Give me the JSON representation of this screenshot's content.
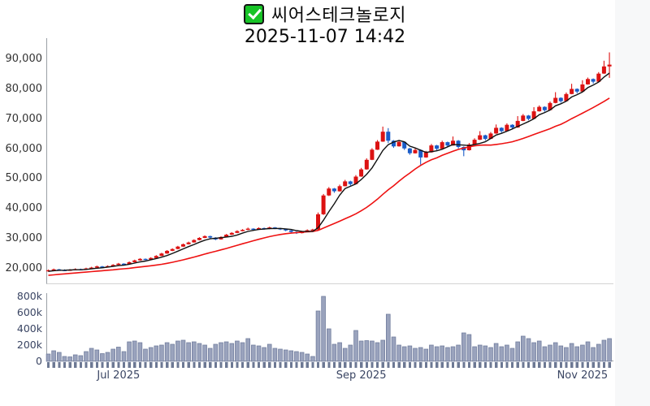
{
  "header": {
    "checkbox_icon": "checked-green-checkbox",
    "title": "씨어스테크놀로지",
    "subtitle": "2025-11-07 14:42"
  },
  "price_axis": {
    "tick_labels": [
      "90,000",
      "80,000",
      "70,000",
      "60,000",
      "50,000",
      "40,000",
      "30,000",
      "20,000"
    ],
    "tick_values": [
      90000,
      80000,
      70000,
      60000,
      50000,
      40000,
      30000,
      20000
    ]
  },
  "volume_axis": {
    "unit": "thousands",
    "tick_labels": [
      "800k",
      "600k",
      "400k",
      "200k",
      "0"
    ],
    "tick_values_k": [
      800,
      600,
      400,
      200,
      0
    ]
  },
  "time_axis": {
    "labels": [
      {
        "text": "Jul 2025",
        "candle_index": 13
      },
      {
        "text": "Sep 2025",
        "candle_index": 58
      },
      {
        "text": "Nov 2025",
        "candle_index": 99
      }
    ]
  },
  "colors": {
    "up": "#dc1212",
    "down": "#1a5cc8",
    "ma_fast": "#111111",
    "ma_slow": "#ee1111",
    "volume_fill": "#9aa3bd",
    "volume_stroke": "#727e9e",
    "axis_text": "#333333",
    "slate_text": "#3a4563",
    "plot_bg": "#ffffff",
    "page_bg": "#f7f8f9"
  },
  "chart_data": {
    "type": "candlestick",
    "title": "씨어스테크놀로지",
    "subtitle": "2025-11-07 14:42",
    "panes": [
      "price-candles-with-ma-overlays",
      "volume-bars"
    ],
    "x_tick_labels": [
      "Jul 2025",
      "Sep 2025",
      "Nov 2025"
    ],
    "price_axis_ticks": [
      20000,
      30000,
      40000,
      50000,
      60000,
      70000,
      80000,
      90000
    ],
    "price_display_range": [
      17500,
      93500
    ],
    "volume_axis_ticks_k": [
      0,
      200,
      400,
      600,
      800
    ],
    "grid": false,
    "legend": false,
    "overlays": [
      {
        "name": "fast-moving-average",
        "period": 5,
        "color": "#111111"
      },
      {
        "name": "slow-moving-average",
        "period": 20,
        "color": "#ee1111"
      }
    ],
    "candles_ohlcv_format": [
      "open",
      "high",
      "low",
      "close",
      "volume_k"
    ],
    "candles_ohlcv": [
      [
        19300,
        19750,
        19000,
        19500,
        90
      ],
      [
        19500,
        20050,
        19350,
        19800,
        130
      ],
      [
        19800,
        19950,
        19400,
        19600,
        110
      ],
      [
        19600,
        19800,
        19200,
        19400,
        60
      ],
      [
        19400,
        19900,
        19300,
        19700,
        55
      ],
      [
        19700,
        20150,
        19550,
        19900,
        80
      ],
      [
        19900,
        20050,
        19550,
        19750,
        70
      ],
      [
        19750,
        20350,
        19650,
        20100,
        120
      ],
      [
        20100,
        20650,
        20000,
        20400,
        160
      ],
      [
        20400,
        21050,
        20300,
        20800,
        140
      ],
      [
        20800,
        20950,
        20400,
        20600,
        95
      ],
      [
        20600,
        21150,
        20500,
        20900,
        110
      ],
      [
        20900,
        21550,
        20800,
        21300,
        150
      ],
      [
        21300,
        21950,
        21200,
        21700,
        175
      ],
      [
        21700,
        21850,
        21300,
        21500,
        120
      ],
      [
        21500,
        22450,
        21400,
        22200,
        240
      ],
      [
        22200,
        23050,
        22100,
        22800,
        250
      ],
      [
        22800,
        23550,
        22700,
        23300,
        230
      ],
      [
        23300,
        23450,
        22850,
        23100,
        150
      ],
      [
        23100,
        23850,
        23000,
        23600,
        170
      ],
      [
        23600,
        24550,
        23500,
        24300,
        190
      ],
      [
        24300,
        25350,
        24200,
        25100,
        200
      ],
      [
        25100,
        26250,
        25000,
        26000,
        230
      ],
      [
        26000,
        26850,
        25900,
        26600,
        210
      ],
      [
        26600,
        27650,
        26500,
        27400,
        250
      ],
      [
        27400,
        28450,
        27300,
        28200,
        260
      ],
      [
        28200,
        29050,
        28100,
        28800,
        230
      ],
      [
        28800,
        29850,
        28700,
        29600,
        240
      ],
      [
        29600,
        30550,
        29500,
        30300,
        220
      ],
      [
        30300,
        31150,
        30200,
        30900,
        200
      ],
      [
        30900,
        31050,
        30200,
        30400,
        160
      ],
      [
        30400,
        30550,
        29550,
        29800,
        210
      ],
      [
        29800,
        30850,
        29700,
        30600,
        230
      ],
      [
        30600,
        31650,
        30500,
        31400,
        240
      ],
      [
        31400,
        32250,
        31300,
        32000,
        220
      ],
      [
        32000,
        32850,
        31900,
        32600,
        250
      ],
      [
        32600,
        33250,
        32500,
        33000,
        230
      ],
      [
        33000,
        33750,
        32900,
        33400,
        280
      ],
      [
        33400,
        33550,
        32850,
        33100,
        200
      ],
      [
        33100,
        33850,
        33000,
        33600,
        190
      ],
      [
        33600,
        33750,
        33050,
        33300,
        170
      ],
      [
        33300,
        34050,
        33200,
        33800,
        210
      ],
      [
        33800,
        33950,
        33250,
        33500,
        160
      ],
      [
        33500,
        33650,
        32950,
        33200,
        150
      ],
      [
        33200,
        33350,
        32550,
        32800,
        140
      ],
      [
        32800,
        32950,
        32050,
        32300,
        130
      ],
      [
        32300,
        32450,
        31650,
        31900,
        120
      ],
      [
        31900,
        32650,
        31800,
        32400,
        110
      ],
      [
        32400,
        33150,
        32300,
        32900,
        90
      ],
      [
        32900,
        33350,
        32700,
        33100,
        60
      ],
      [
        33100,
        38800,
        32900,
        38200,
        620
      ],
      [
        38200,
        45000,
        38000,
        44500,
        800
      ],
      [
        44500,
        47300,
        44300,
        46800,
        400
      ],
      [
        46800,
        47000,
        45400,
        45900,
        210
      ],
      [
        45900,
        48100,
        45800,
        47600,
        230
      ],
      [
        47600,
        49700,
        47500,
        49200,
        160
      ],
      [
        49200,
        49400,
        47800,
        48300,
        200
      ],
      [
        48300,
        51300,
        48200,
        50800,
        380
      ],
      [
        50800,
        53700,
        50700,
        53200,
        250
      ],
      [
        53200,
        56900,
        53100,
        56400,
        255
      ],
      [
        56400,
        60300,
        56300,
        59800,
        250
      ],
      [
        59800,
        63000,
        59700,
        62500,
        230
      ],
      [
        62500,
        67500,
        62400,
        65800,
        260
      ],
      [
        65800,
        67000,
        62000,
        62800,
        580
      ],
      [
        62800,
        63000,
        60400,
        60900,
        300
      ],
      [
        60900,
        62900,
        60800,
        62400,
        200
      ],
      [
        62400,
        62600,
        59700,
        60200,
        180
      ],
      [
        60200,
        60400,
        58100,
        58600,
        190
      ],
      [
        58600,
        60200,
        58500,
        59700,
        160
      ],
      [
        59700,
        59900,
        54800,
        57200,
        170
      ],
      [
        57200,
        59400,
        57100,
        58900,
        150
      ],
      [
        58900,
        61700,
        58800,
        61200,
        200
      ],
      [
        61200,
        61400,
        59600,
        60100,
        180
      ],
      [
        60100,
        62800,
        60000,
        62300,
        190
      ],
      [
        62300,
        62500,
        60700,
        61200,
        170
      ],
      [
        61200,
        64200,
        61100,
        62800,
        180
      ],
      [
        62800,
        63000,
        60200,
        60700,
        200
      ],
      [
        60700,
        60900,
        57600,
        59600,
        350
      ],
      [
        59600,
        62000,
        59500,
        61500,
        330
      ],
      [
        61500,
        63600,
        61400,
        63100,
        180
      ],
      [
        63100,
        66000,
        63000,
        64600,
        200
      ],
      [
        64600,
        64800,
        62900,
        63400,
        190
      ],
      [
        63400,
        65700,
        63300,
        65200,
        170
      ],
      [
        65200,
        68200,
        65100,
        67100,
        220
      ],
      [
        67100,
        67300,
        65500,
        66000,
        180
      ],
      [
        66000,
        68600,
        65900,
        68100,
        200
      ],
      [
        68100,
        68300,
        66700,
        67200,
        160
      ],
      [
        67200,
        71000,
        67100,
        69400,
        240
      ],
      [
        69400,
        71700,
        69300,
        71200,
        310
      ],
      [
        71200,
        71400,
        69600,
        70100,
        280
      ],
      [
        70100,
        74000,
        70000,
        72600,
        230
      ],
      [
        72600,
        74600,
        72500,
        74100,
        250
      ],
      [
        74100,
        74300,
        72500,
        73000,
        180
      ],
      [
        73000,
        75900,
        72900,
        75400,
        200
      ],
      [
        75400,
        79000,
        75300,
        77100,
        230
      ],
      [
        77100,
        77300,
        75500,
        76000,
        190
      ],
      [
        76000,
        78900,
        75900,
        78400,
        170
      ],
      [
        78400,
        81800,
        78300,
        80100,
        220
      ],
      [
        80100,
        80300,
        78600,
        79200,
        180
      ],
      [
        79200,
        83000,
        79100,
        81600,
        200
      ],
      [
        81600,
        83900,
        81500,
        83400,
        240
      ],
      [
        83400,
        83600,
        81900,
        82500,
        170
      ],
      [
        82500,
        85700,
        82400,
        85200,
        210
      ],
      [
        85200,
        89500,
        85100,
        87600,
        260
      ],
      [
        87600,
        92300,
        83800,
        88200,
        280
      ]
    ]
  }
}
